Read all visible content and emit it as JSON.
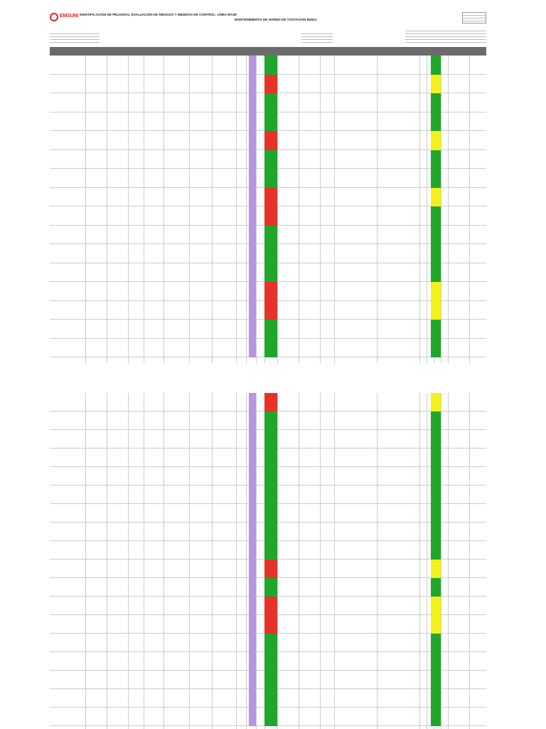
{
  "header": {
    "logo_text": "EMSUNI",
    "title": "IDENTIFICACIÓN DE PELIGROS, EVALUACIÓN DE RIESGOS Y MEDIDAS DE CONTROL: LÍNEA BASE",
    "subtitle": "MANTENIMIENTO DE HORNO DE TOSTACION B2814"
  },
  "colors": {
    "header_gray": "#6b6b6b",
    "purple": "#b794e6",
    "green": "#21a62c",
    "red": "#e6322a",
    "yellow": "#f4f01a",
    "brand_red": "#dd2222"
  },
  "page1_rows": [
    {
      "risk": "green",
      "accept": "green"
    },
    {
      "risk": "red",
      "accept": "yellow"
    },
    {
      "risk": "green",
      "accept": "green"
    },
    {
      "risk": "green",
      "accept": "green"
    },
    {
      "risk": "red",
      "accept": "yellow"
    },
    {
      "risk": "green",
      "accept": "green"
    },
    {
      "risk": "green",
      "accept": "green"
    },
    {
      "risk": "red",
      "accept": "yellow"
    },
    {
      "risk": "red",
      "accept": "green"
    },
    {
      "risk": "green",
      "accept": "green"
    },
    {
      "risk": "green",
      "accept": "green"
    },
    {
      "risk": "green",
      "accept": "green"
    },
    {
      "risk": "red",
      "accept": "yellow"
    },
    {
      "risk": "red",
      "accept": "yellow"
    },
    {
      "risk": "green",
      "accept": "green"
    },
    {
      "risk": "green",
      "accept": "green"
    }
  ],
  "page2_rows": [
    {
      "risk": "red",
      "accept": "yellow"
    },
    {
      "risk": "green",
      "accept": "green"
    },
    {
      "risk": "green",
      "accept": "green"
    },
    {
      "risk": "green",
      "accept": "green"
    },
    {
      "risk": "green",
      "accept": "green"
    },
    {
      "risk": "green",
      "accept": "green"
    },
    {
      "risk": "green",
      "accept": "green"
    },
    {
      "risk": "green",
      "accept": "green"
    },
    {
      "risk": "green",
      "accept": "green"
    },
    {
      "risk": "red",
      "accept": "yellow"
    },
    {
      "risk": "green",
      "accept": "green"
    },
    {
      "risk": "red",
      "accept": "yellow"
    },
    {
      "risk": "red",
      "accept": "yellow"
    },
    {
      "risk": "green",
      "accept": "green"
    },
    {
      "risk": "green",
      "accept": "green"
    },
    {
      "risk": "green",
      "accept": "green"
    },
    {
      "risk": "green",
      "accept": "green"
    },
    {
      "risk": "green",
      "accept": "green"
    }
  ]
}
